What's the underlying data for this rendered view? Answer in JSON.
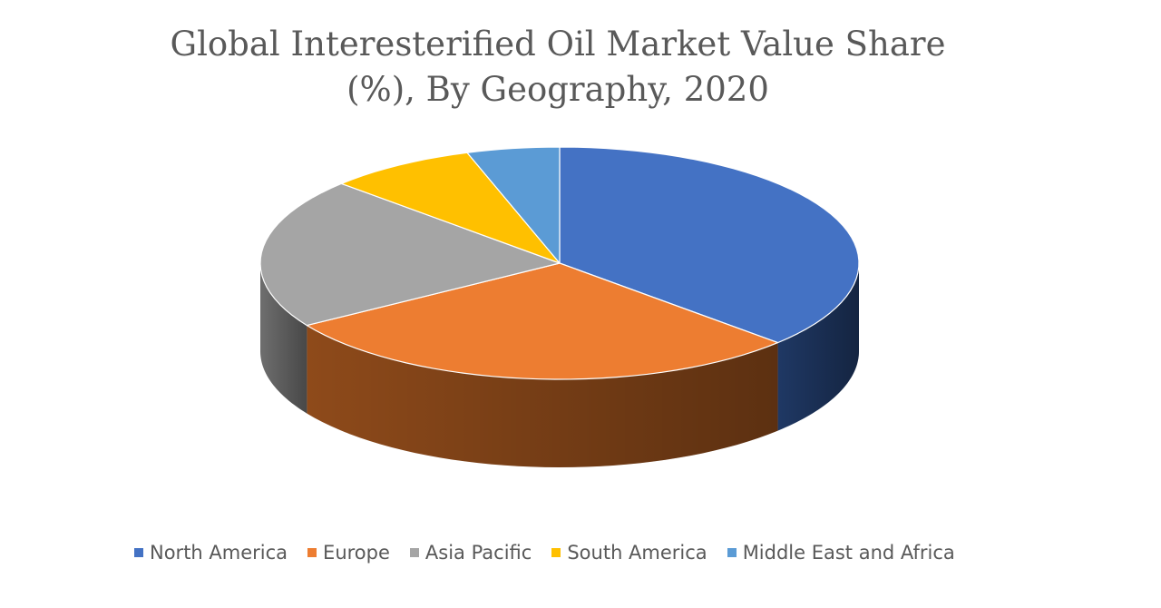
{
  "chart_data": {
    "type": "pie",
    "title_lines": [
      "Global Interesterified Oil Market Value Share",
      "(%), By Geography, 2020"
    ],
    "slices": [
      {
        "label": "North America",
        "value": 37,
        "color": "#4472C4",
        "side_color": "#1F3864"
      },
      {
        "label": "Europe",
        "value": 29,
        "color": "#ED7D31",
        "side_color": "#8E4A1A"
      },
      {
        "label": "Asia Pacific",
        "value": 21,
        "color": "#A5A5A5",
        "side_color": "#6E6E6E"
      },
      {
        "label": "South America",
        "value": 8,
        "color": "#FFC000",
        "side_color": "#A67C00"
      },
      {
        "label": "Middle East and Africa",
        "value": 5,
        "color": "#5B9BD5",
        "side_color": "#2E6A9E"
      }
    ],
    "legend_position": "bottom",
    "style": "3d"
  }
}
